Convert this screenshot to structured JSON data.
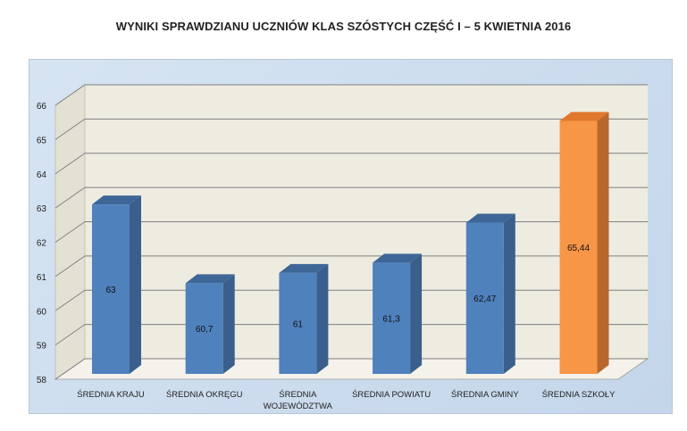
{
  "title": "WYNIKI SPRAWDZIANU UCZNIÓW KLAS SZÓSTYCH CZĘŚĆ I – 5 KWIETNIA 2016",
  "colors": {
    "bar_default": "#4f81bd",
    "bar_highlight": "#f79646",
    "plot_background": "#eeece1",
    "frame_background": "#d6e4f2",
    "gridline": "#7f7f7f"
  },
  "chart_data": {
    "type": "bar",
    "style": "3d-column",
    "title": "WYNIKI SPRAWDZIANU UCZNIÓW KLAS SZÓSTYCH CZĘŚĆ I – 5 KWIETNIA 2016",
    "categories": [
      [
        "ŚREDNIA KRAJU"
      ],
      [
        "ŚREDNIA OKRĘGU"
      ],
      [
        "ŚREDNIA",
        "WOJEWÓDZTWA"
      ],
      [
        "ŚREDNIA POWIATU"
      ],
      [
        "ŚREDNIA GMINY"
      ],
      [
        "ŚREDNIA  SZKOŁY"
      ]
    ],
    "values": [
      63,
      60.7,
      61,
      61.3,
      62.47,
      65.44
    ],
    "data_labels": [
      "63",
      "60,7",
      "61",
      "61,3",
      "62,47",
      "65,44"
    ],
    "highlight_index": 5,
    "ylim": [
      58,
      66
    ],
    "yticks": [
      58,
      59,
      60,
      61,
      62,
      63,
      64,
      65,
      66
    ],
    "grid": true,
    "legend": "none",
    "xlabel": "",
    "ylabel": ""
  }
}
